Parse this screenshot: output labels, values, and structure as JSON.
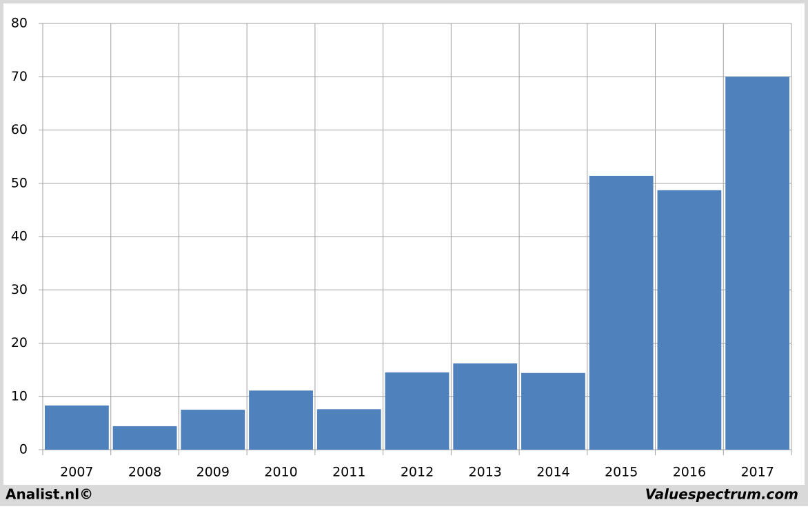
{
  "chart_data": {
    "type": "bar",
    "categories": [
      "2007",
      "2008",
      "2009",
      "2010",
      "2011",
      "2012",
      "2013",
      "2014",
      "2015",
      "2016",
      "2017"
    ],
    "values": [
      8.3,
      4.4,
      7.5,
      11.1,
      7.6,
      14.5,
      16.2,
      14.4,
      51.4,
      48.7,
      70.0
    ],
    "color": "#4f81bd",
    "ylim": [
      0,
      80
    ],
    "yticks": [
      0,
      10,
      20,
      30,
      40,
      50,
      60,
      70,
      80
    ],
    "grid": true,
    "annotations": [
      "Analist.nl©",
      "Valuespectrum.com"
    ]
  }
}
